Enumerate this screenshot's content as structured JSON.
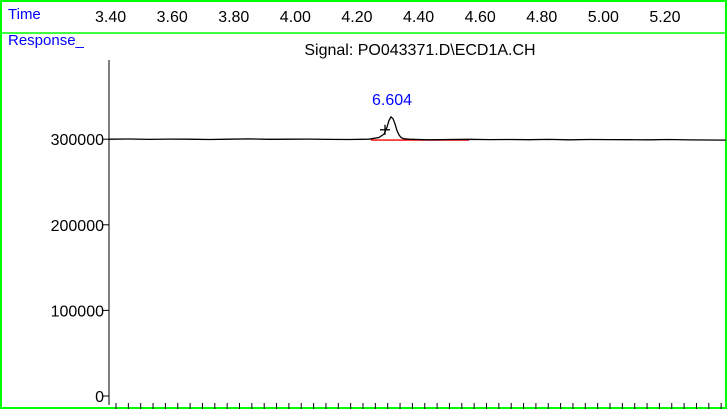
{
  "chart_data": {
    "type": "line",
    "header_label": "Time",
    "y_header": "Response_",
    "title": "Signal: PO043371.D\\ECD1A.CH",
    "top_ticks": [
      "3.40",
      "3.60",
      "3.80",
      "4.00",
      "4.20",
      "4.40",
      "4.60",
      "4.80",
      "5.00",
      "5.20"
    ],
    "y_ticks": [
      0,
      100000,
      200000,
      300000
    ],
    "y_tick_labels": [
      "0",
      "100000",
      "200000",
      "300000"
    ],
    "ylim": [
      0,
      360000
    ],
    "x": [
      0,
      20,
      40,
      60,
      80,
      100,
      120,
      140,
      160,
      180,
      200,
      220,
      240,
      260,
      270,
      275,
      278,
      280,
      282,
      284,
      286,
      288,
      290,
      292,
      295,
      300,
      310,
      320,
      340,
      360,
      380,
      400,
      420,
      440,
      460,
      480,
      500,
      520,
      540,
      560,
      580,
      600,
      617
    ],
    "y": [
      300000,
      300200,
      299800,
      300100,
      300000,
      299700,
      300000,
      300300,
      299900,
      300000,
      300100,
      299800,
      299600,
      300000,
      302000,
      306000,
      314000,
      322000,
      326000,
      324000,
      318000,
      310000,
      305000,
      302000,
      300500,
      300000,
      299600,
      299300,
      299700,
      299900,
      299500,
      299700,
      299400,
      299800,
      299300,
      299600,
      299500,
      299400,
      299300,
      299600,
      299200,
      299100,
      299000
    ],
    "baseline": {
      "x1": 262,
      "x2": 360,
      "y": 299000,
      "color": "#ff0000"
    },
    "peak_label": {
      "text": "6.604",
      "x": 283,
      "y": 340000
    },
    "peak_marker": {
      "x": 276,
      "y": 311000
    },
    "colors": {
      "signal": "#000000",
      "frame": "#00ff00",
      "header_text": "#0000ff",
      "peak_label": "#0000ff"
    }
  }
}
